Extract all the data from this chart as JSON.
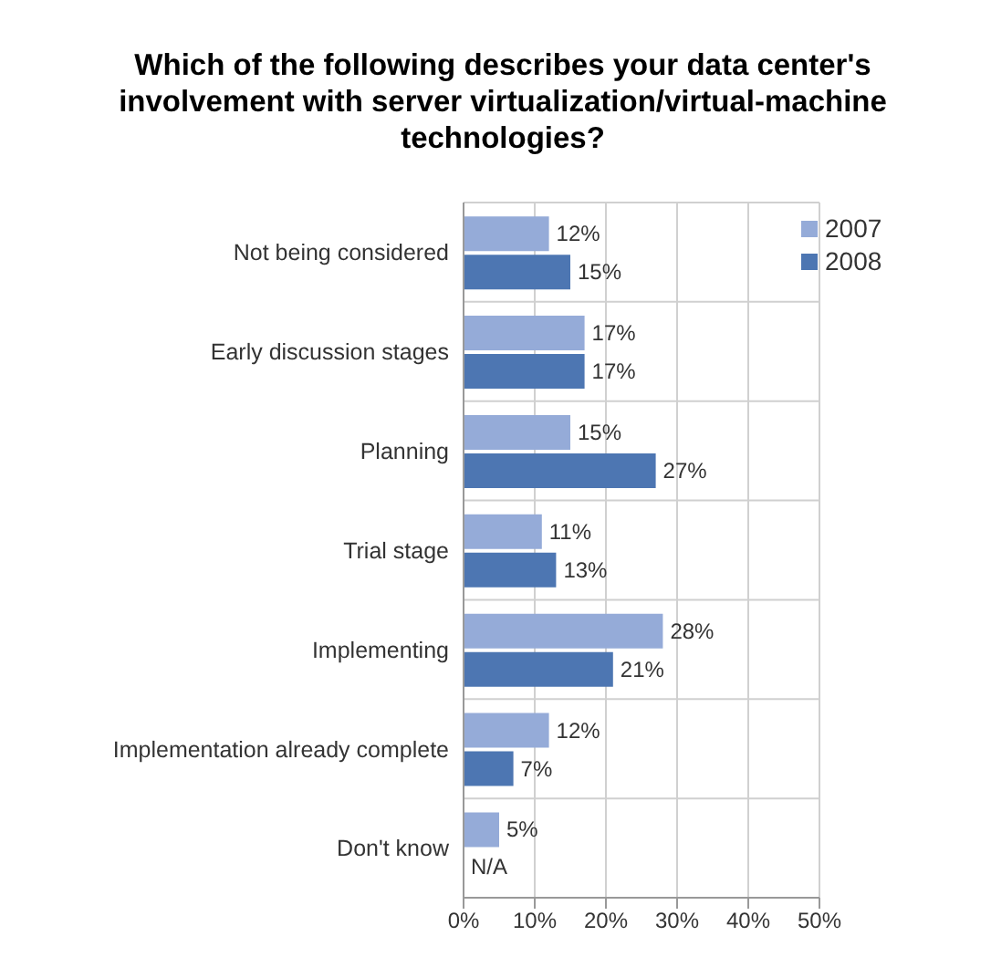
{
  "chart_data": {
    "type": "bar",
    "orientation": "horizontal",
    "title": "Which of the following describes your data center's involvement with server virtualization/virtual-machine technologies?",
    "categories": [
      "Not being considered",
      "Early discussion stages",
      "Planning",
      "Trial stage",
      "Implementing",
      "Implementation already complete",
      "Don't know"
    ],
    "series": [
      {
        "name": "2007",
        "color": "#95abd8",
        "values": [
          12,
          17,
          15,
          11,
          28,
          12,
          5
        ],
        "value_labels": [
          "12%",
          "17%",
          "15%",
          "11%",
          "28%",
          "12%",
          "5%"
        ]
      },
      {
        "name": "2008",
        "color": "#4d76b2",
        "values": [
          15,
          17,
          27,
          13,
          21,
          7,
          null
        ],
        "value_labels": [
          "15%",
          "17%",
          "27%",
          "13%",
          "21%",
          "7%",
          "N/A"
        ]
      }
    ],
    "xlim": [
      0,
      50
    ],
    "xticks": [
      {
        "value": 0,
        "label": "0%"
      },
      {
        "value": 10,
        "label": "10%"
      },
      {
        "value": 20,
        "label": "20%"
      },
      {
        "value": 30,
        "label": "30%"
      },
      {
        "value": 40,
        "label": "40%"
      },
      {
        "value": 50,
        "label": "50%"
      }
    ],
    "grid": true,
    "legend": "top right"
  }
}
